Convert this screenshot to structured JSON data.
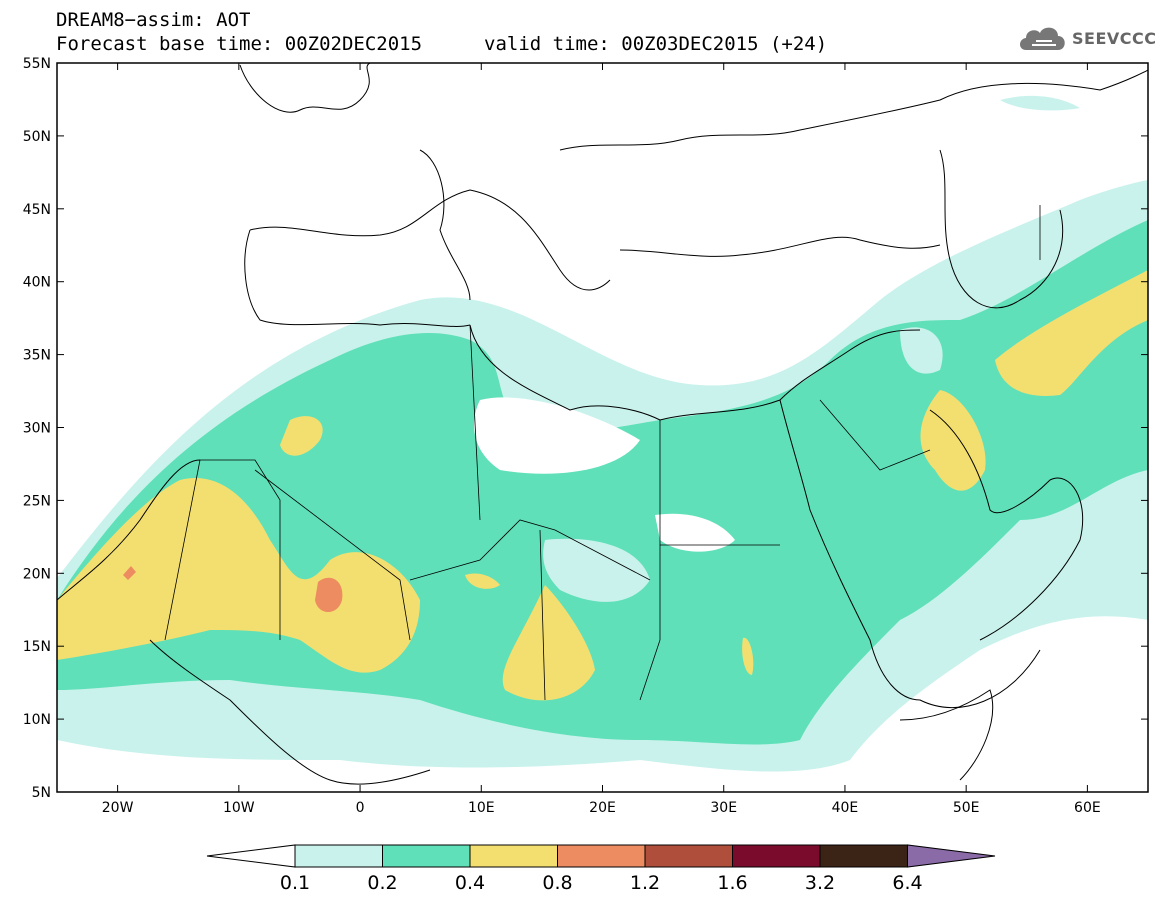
{
  "header": {
    "title": "DREAM8−assim: AOT",
    "base_time": "Forecast base time: 00Z02DEC2015",
    "valid_time": "valid time: 00Z03DEC2015 (+24)"
  },
  "logo": {
    "text": "SEEVCCC",
    "icon": "cloud-logo-icon"
  },
  "axes": {
    "lat_labels": [
      "55N",
      "50N",
      "45N",
      "40N",
      "35N",
      "30N",
      "25N",
      "20N",
      "15N",
      "10N",
      "5N"
    ],
    "lon_labels": [
      "20W",
      "10W",
      "0",
      "10E",
      "20E",
      "30E",
      "40E",
      "50E",
      "60E"
    ]
  },
  "legend": {
    "thresholds": [
      "0.1",
      "0.2",
      "0.4",
      "0.8",
      "1.2",
      "1.6",
      "3.2",
      "6.4"
    ],
    "colors": [
      "#ffffff",
      "#c9f2ec",
      "#5fe0b8",
      "#f3df70",
      "#ec8c60",
      "#b04e3c",
      "#7b0b2c",
      "#3b2416",
      "#8b6aa8"
    ]
  },
  "chart_data": {
    "type": "heatmap",
    "variable": "AOT",
    "xlim": [
      -25,
      65
    ],
    "ylim": [
      5,
      55
    ],
    "contour_levels": [
      0.1,
      0.2,
      0.4,
      0.8,
      1.2,
      1.6,
      3.2,
      6.4
    ]
  }
}
